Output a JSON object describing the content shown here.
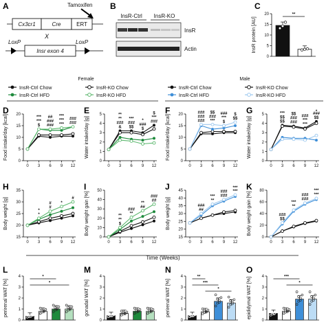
{
  "panel_labels": [
    "A",
    "B",
    "C",
    "D",
    "E",
    "F",
    "G",
    "H",
    "I",
    "J",
    "K",
    "L",
    "M",
    "N",
    "O"
  ],
  "schematic": {
    "tamoxifen": "Tamoxifen",
    "gene_boxes": [
      "Cx3cr1",
      "Cre",
      "ERT"
    ],
    "cross": "X",
    "loxp_left": "LoxP",
    "loxp_right": "LoxP",
    "exon": "Insr exon 4"
  },
  "blot": {
    "group_labels": [
      "InsR-Ctrl",
      "InsR-KO"
    ],
    "band_labels": [
      "InsR",
      "Actin"
    ]
  },
  "colors": {
    "ctrl_chow": "#111111",
    "ko_chow": "#111111",
    "ctrl_hfd_f": "#1e8a3c",
    "ko_hfd_f": "#5cb86e",
    "ctrl_hfd_m": "#3f8fd8",
    "ko_hfd_m": "#9cc8ef"
  },
  "legend_female": {
    "title": "Female",
    "items": [
      "InsR-Ctrl Chow",
      "InsR-KO Chow",
      "InsR-Ctrl HFD",
      "InsR-KO HFD"
    ]
  },
  "legend_male": {
    "title": "Male",
    "items": [
      "InsR-Ctrl Chow",
      "InsR-KO Chow",
      "InsR-Ctrl HFD",
      "InsR-KO HFD"
    ]
  },
  "time_axis_label": "Time (Weeks)",
  "chart_data": [
    {
      "id": "C",
      "type": "bar",
      "ylabel": "InsR protein [AU]",
      "ylim": [
        0,
        20
      ],
      "yticks": [
        "0",
        "5",
        "10",
        "15",
        "20"
      ],
      "categories": [
        "InsR-Ctrl",
        "InsR-KO"
      ],
      "values": [
        14.5,
        3.3
      ],
      "colors": [
        "#111111",
        "#ffffff"
      ],
      "points": [
        [
          13.2,
          14.2,
          16.0
        ],
        [
          3.0,
          3.3,
          3.5
        ]
      ],
      "annotations": [
        "**"
      ]
    },
    {
      "id": "D",
      "type": "line",
      "ylabel": "Food intake/day [kcal]",
      "ylim": [
        0,
        20
      ],
      "yticks": [
        "0",
        "5",
        "10",
        "15",
        "20"
      ],
      "x": [
        0,
        3,
        6,
        9,
        12
      ],
      "xticks": [
        "0",
        "3",
        "6",
        "9",
        "12"
      ],
      "series": [
        {
          "name": "InsR-Ctrl Chow",
          "values": [
            5.0,
            10.5,
            10.0,
            10.5,
            10.5
          ],
          "color": "#111111",
          "marker": "filled"
        },
        {
          "name": "InsR-KO Chow",
          "values": [
            5.0,
            11.0,
            11.0,
            11.0,
            11.5
          ],
          "color": "#111111",
          "marker": "open"
        },
        {
          "name": "InsR-Ctrl HFD",
          "values": [
            5.0,
            13.5,
            13.0,
            13.0,
            14.5
          ],
          "color": "#1e8a3c",
          "marker": "filled"
        },
        {
          "name": "InsR-KO HFD",
          "values": [
            5.0,
            13.5,
            13.5,
            14.0,
            14.5
          ],
          "color": "#5cb86e",
          "marker": "open"
        }
      ],
      "annotations": [
        "$",
        "###",
        "***",
        "###",
        "***",
        "###",
        "***",
        "###",
        "***",
        "##",
        "***"
      ]
    },
    {
      "id": "E",
      "type": "line",
      "ylabel": "Water intake/day [g]",
      "ylim": [
        0,
        5
      ],
      "yticks": [
        "0",
        "1",
        "2",
        "3",
        "4",
        "5"
      ],
      "x": [
        0,
        3,
        6,
        9,
        12
      ],
      "xticks": [
        "0",
        "3",
        "6",
        "9",
        "12"
      ],
      "series": [
        {
          "name": "InsR-Ctrl Chow",
          "values": [
            1.2,
            3.2,
            3.2,
            3.0,
            3.8
          ],
          "color": "#111111",
          "marker": "filled"
        },
        {
          "name": "InsR-KO Chow",
          "values": [
            1.2,
            3.0,
            3.0,
            2.8,
            3.4
          ],
          "color": "#111111",
          "marker": "open"
        },
        {
          "name": "InsR-Ctrl HFD",
          "values": [
            1.2,
            2.5,
            2.3,
            2.2,
            2.4
          ],
          "color": "#1e8a3c",
          "marker": "filled"
        },
        {
          "name": "InsR-KO HFD",
          "values": [
            1.2,
            2.2,
            2.1,
            1.8,
            1.9
          ],
          "color": "#5cb86e",
          "marker": "open"
        }
      ],
      "annotations": [
        "&",
        "$$",
        "$",
        "###",
        "###",
        "###",
        "###",
        "***",
        "**",
        "***",
        "*",
        "$",
        "**"
      ]
    },
    {
      "id": "F",
      "type": "line",
      "ylabel": "Food intake/day [kcal]",
      "ylim": [
        0,
        20
      ],
      "yticks": [
        "0",
        "5",
        "10",
        "15",
        "20"
      ],
      "x": [
        0,
        3,
        6,
        9,
        12
      ],
      "xticks": [
        "0",
        "3",
        "6",
        "9",
        "12"
      ],
      "series": [
        {
          "name": "InsR-Ctrl Chow",
          "values": [
            5.0,
            11.5,
            11.5,
            12.0,
            12.0
          ],
          "color": "#111111",
          "marker": "filled"
        },
        {
          "name": "InsR-KO Chow",
          "values": [
            5.0,
            12.0,
            12.5,
            12.5,
            12.5
          ],
          "color": "#111111",
          "marker": "open"
        },
        {
          "name": "InsR-Ctrl HFD",
          "values": [
            5.0,
            15.0,
            13.5,
            14.0,
            15.0
          ],
          "color": "#3f8fd8",
          "marker": "filled"
        },
        {
          "name": "InsR-KO HFD",
          "values": [
            5.0,
            15.5,
            15.5,
            15.0,
            16.5
          ],
          "color": "#9cc8ef",
          "marker": "open"
        }
      ],
      "annotations": [
        "###",
        "***",
        "$",
        "$$",
        "###",
        "###",
        "***",
        "$",
        "###",
        "$$",
        "###"
      ]
    },
    {
      "id": "G",
      "type": "line",
      "ylabel": "Water intake/day [g]",
      "ylim": [
        0,
        5
      ],
      "yticks": [
        "0",
        "1",
        "2",
        "3",
        "4",
        "5"
      ],
      "x": [
        0,
        3,
        6,
        9,
        12
      ],
      "xticks": [
        "0",
        "3",
        "6",
        "9",
        "12"
      ],
      "series": [
        {
          "name": "InsR-Ctrl Chow",
          "values": [
            1.2,
            3.8,
            3.7,
            3.5,
            4.2
          ],
          "color": "#111111",
          "marker": "filled"
        },
        {
          "name": "InsR-KO Chow",
          "values": [
            1.2,
            3.7,
            3.6,
            3.4,
            4.0
          ],
          "color": "#111111",
          "marker": "open"
        },
        {
          "name": "InsR-Ctrl HFD",
          "values": [
            1.2,
            2.5,
            2.4,
            2.4,
            2.2
          ],
          "color": "#3f8fd8",
          "marker": "filled"
        },
        {
          "name": "InsR-KO HFD",
          "values": [
            1.2,
            2.3,
            2.3,
            2.2,
            2.7
          ],
          "color": "#9cc8ef",
          "marker": "open"
        }
      ],
      "annotations": [
        "$$",
        "###",
        "***",
        "$$",
        "$$",
        "###",
        "***",
        "###",
        "***",
        "$$",
        "###",
        "*"
      ]
    },
    {
      "id": "H",
      "type": "line",
      "ylabel": "Body weight [g]",
      "ylim": [
        15,
        35
      ],
      "yticks": [
        "15",
        "20",
        "25",
        "30",
        "35"
      ],
      "x": [
        0,
        3,
        6,
        9,
        12
      ],
      "xticks": [
        "0",
        "3",
        "6",
        "9",
        "12"
      ],
      "series": [
        {
          "name": "InsR-Ctrl Chow",
          "values": [
            20.0,
            21.0,
            22.0,
            23.0,
            24.0
          ],
          "color": "#111111",
          "marker": "filled"
        },
        {
          "name": "InsR-KO Chow",
          "values": [
            20.0,
            21.5,
            23.0,
            24.0,
            25.0
          ],
          "color": "#111111",
          "marker": "open"
        },
        {
          "name": "InsR-Ctrl HFD",
          "values": [
            20.0,
            22.5,
            24.5,
            26.0,
            27.5
          ],
          "color": "#1e8a3c",
          "marker": "filled"
        },
        {
          "name": "InsR-KO HFD",
          "values": [
            20.0,
            23.0,
            26.0,
            28.0,
            30.0
          ],
          "color": "#5cb86e",
          "marker": "open"
        }
      ],
      "annotations": [
        "*",
        "#",
        "*",
        "#",
        "*",
        "#"
      ]
    },
    {
      "id": "I",
      "type": "line",
      "ylabel": "Body weight gain [%]",
      "ylim": [
        0,
        50
      ],
      "yticks": [
        "0",
        "10",
        "20",
        "30",
        "40",
        "50"
      ],
      "x": [
        0,
        3,
        6,
        9,
        12
      ],
      "xticks": [
        "0",
        "3",
        "6",
        "9",
        "12"
      ],
      "series": [
        {
          "name": "InsR-Ctrl Chow",
          "values": [
            0,
            5,
            9,
            13,
            17
          ],
          "color": "#111111",
          "marker": "filled"
        },
        {
          "name": "InsR-KO Chow",
          "values": [
            0,
            6,
            12,
            16,
            21
          ],
          "color": "#111111",
          "marker": "open"
        },
        {
          "name": "InsR-Ctrl HFD",
          "values": [
            0,
            8,
            17,
            22,
            27
          ],
          "color": "#1e8a3c",
          "marker": "filled"
        },
        {
          "name": "InsR-KO HFD",
          "values": [
            0,
            10,
            21,
            28,
            35
          ],
          "color": "#5cb86e",
          "marker": "open"
        }
      ],
      "annotations": [
        "$",
        "**",
        "##",
        "##",
        "**",
        "###",
        "**",
        "###",
        "**"
      ]
    },
    {
      "id": "J",
      "type": "line",
      "ylabel": "Body weight [g]",
      "ylim": [
        15,
        45
      ],
      "yticks": [
        "15",
        "20",
        "25",
        "30",
        "35",
        "40",
        "45"
      ],
      "x": [
        0,
        3,
        6,
        9,
        12
      ],
      "xticks": [
        "0",
        "3",
        "6",
        "9",
        "12"
      ],
      "series": [
        {
          "name": "InsR-Ctrl Chow",
          "values": [
            24,
            27,
            29,
            30,
            31
          ],
          "color": "#111111",
          "marker": "filled"
        },
        {
          "name": "InsR-KO Chow",
          "values": [
            24,
            27,
            29,
            31,
            32
          ],
          "color": "#111111",
          "marker": "open"
        },
        {
          "name": "InsR-Ctrl HFD",
          "values": [
            24,
            29,
            35,
            38,
            41
          ],
          "color": "#3f8fd8",
          "marker": "filled"
        },
        {
          "name": "InsR-KO HFD",
          "values": [
            24,
            30,
            36,
            39,
            42
          ],
          "color": "#9cc8ef",
          "marker": "open"
        }
      ],
      "annotations": [
        "##",
        "**",
        "###",
        "***",
        "###",
        "***",
        "###",
        "***"
      ]
    },
    {
      "id": "K",
      "type": "line",
      "ylabel": "Body weight gain [%]",
      "ylim": [
        0,
        80
      ],
      "yticks": [
        "0",
        "20",
        "40",
        "60",
        "80"
      ],
      "x": [
        0,
        3,
        6,
        9,
        12
      ],
      "xticks": [
        "0",
        "3",
        "6",
        "9",
        "12"
      ],
      "series": [
        {
          "name": "InsR-Ctrl Chow",
          "values": [
            0,
            10,
            17,
            23,
            27
          ],
          "color": "#111111",
          "marker": "filled"
        },
        {
          "name": "InsR-KO Chow",
          "values": [
            0,
            10,
            18,
            24,
            28
          ],
          "color": "#111111",
          "marker": "open"
        },
        {
          "name": "InsR-Ctrl HFD",
          "values": [
            0,
            22,
            44,
            56,
            64
          ],
          "color": "#3f8fd8",
          "marker": "filled"
        },
        {
          "name": "InsR-KO HFD",
          "values": [
            0,
            24,
            46,
            58,
            66
          ],
          "color": "#9cc8ef",
          "marker": "open"
        }
      ],
      "annotations": [
        "$$",
        "**",
        "###",
        "***",
        "###",
        "***",
        "###",
        "***"
      ]
    },
    {
      "id": "L",
      "type": "bar",
      "ylabel": "perirenal WAT [%]",
      "ylim": [
        0,
        4
      ],
      "yticks": [
        "0",
        "1",
        "2",
        "3",
        "4"
      ],
      "categories": [
        "InsR-Ctrl Chow",
        "InsR-KO Chow",
        "InsR-Ctrl HFD",
        "InsR-KO HFD"
      ],
      "values": [
        0.35,
        0.8,
        1.0,
        1.0
      ],
      "fills": [
        "#111111",
        "#ffffff",
        "#1e8a3c",
        "#b5e0bf"
      ],
      "annotations": [
        "*",
        "*"
      ]
    },
    {
      "id": "M",
      "type": "bar",
      "ylabel": "gonadal WAT [%]",
      "ylim": [
        0,
        4
      ],
      "yticks": [
        "0",
        "1",
        "2",
        "3",
        "4"
      ],
      "categories": [
        "InsR-Ctrl Chow",
        "InsR-KO Chow",
        "InsR-Ctrl HFD",
        "InsR-KO HFD"
      ],
      "values": [
        0.4,
        0.6,
        0.8,
        0.8
      ],
      "fills": [
        "#111111",
        "#ffffff",
        "#1e8a3c",
        "#b5e0bf"
      ],
      "annotations": []
    },
    {
      "id": "N",
      "type": "bar",
      "ylabel": "perirenal WAT [%]",
      "ylim": [
        0,
        4
      ],
      "yticks": [
        "0",
        "1",
        "2",
        "3",
        "4"
      ],
      "categories": [
        "InsR-Ctrl Chow",
        "InsR-KO Chow",
        "InsR-Ctrl HFD",
        "InsR-KO HFD"
      ],
      "values": [
        0.4,
        0.75,
        1.7,
        1.55
      ],
      "fills": [
        "#111111",
        "#ffffff",
        "#3f8fd8",
        "#bcdcf5"
      ],
      "annotations": [
        "**",
        "***",
        "*"
      ]
    },
    {
      "id": "O",
      "type": "bar",
      "ylabel": "epididymal WAT [%]",
      "ylim": [
        0,
        4
      ],
      "yticks": [
        "0",
        "1",
        "2",
        "3",
        "4"
      ],
      "categories": [
        "InsR-Ctrl Chow",
        "InsR-KO Chow",
        "InsR-Ctrl HFD",
        "InsR-KO HFD"
      ],
      "values": [
        0.6,
        0.8,
        1.9,
        1.9
      ],
      "fills": [
        "#111111",
        "#ffffff",
        "#3f8fd8",
        "#bcdcf5"
      ],
      "annotations": [
        "***",
        "*"
      ]
    }
  ]
}
